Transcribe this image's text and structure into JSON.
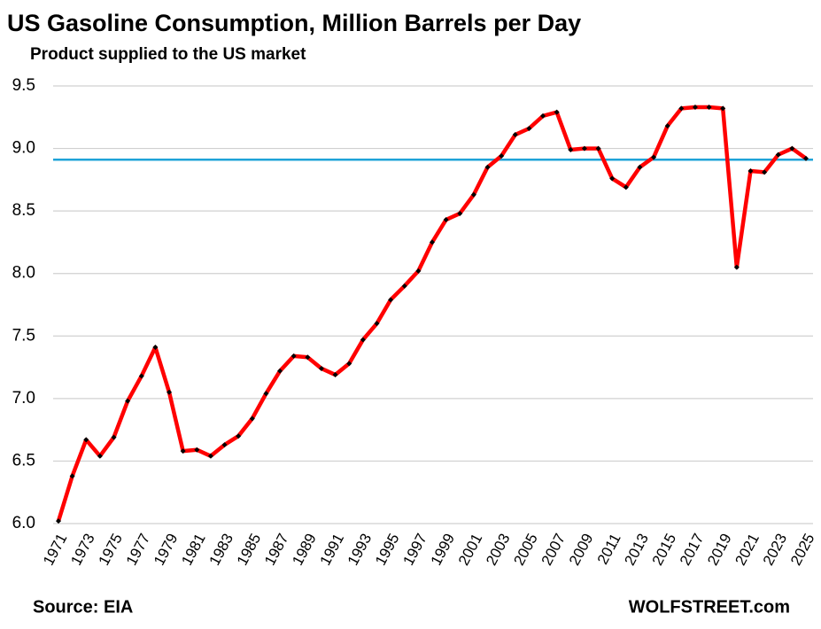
{
  "chart_data": {
    "type": "line",
    "title": "US Gasoline Consumption, Million  Barrels per Day",
    "subtitle": "Product supplied to the US market",
    "source": "Source: EIA",
    "watermark": "WOLFSTREET.com",
    "categories": [
      "1971",
      null,
      "1973",
      null,
      "1975",
      null,
      "1977",
      null,
      "1979",
      null,
      "1981",
      null,
      "1983",
      null,
      "1985",
      null,
      "1987",
      null,
      "1989",
      null,
      "1991",
      null,
      "1993",
      null,
      "1995",
      null,
      "1997",
      null,
      "1999",
      null,
      "2001",
      null,
      "2003",
      null,
      "2005",
      null,
      "2007",
      null,
      "2009",
      null,
      "2011",
      null,
      "2013",
      null,
      "2015",
      null,
      "2017",
      null,
      "2019",
      null,
      "2021",
      null,
      "2023",
      null,
      "2025"
    ],
    "series": [
      {
        "color": "#ff0000",
        "marker_color": "#000000",
        "values": [
          6.02,
          6.38,
          6.67,
          6.54,
          6.69,
          6.98,
          7.18,
          7.41,
          7.05,
          6.58,
          6.59,
          6.54,
          6.63,
          6.7,
          6.84,
          7.04,
          7.22,
          7.34,
          7.33,
          7.24,
          7.19,
          7.28,
          7.47,
          7.6,
          7.79,
          7.9,
          8.02,
          8.25,
          8.43,
          8.48,
          8.63,
          8.85,
          8.94,
          9.11,
          9.16,
          9.26,
          9.29,
          8.99,
          9.0,
          9.0,
          8.76,
          8.69,
          8.85,
          8.93,
          9.18,
          9.32,
          9.33,
          9.33,
          9.32,
          8.05,
          8.82,
          8.81,
          8.95,
          9.0,
          8.92
        ]
      }
    ],
    "reference_line": {
      "value": 8.91,
      "color": "#1fa3d8"
    },
    "ylim": [
      6.0,
      9.5
    ],
    "yticks": [
      {
        "value": 6,
        "label": "6.0"
      },
      {
        "value": 6.5,
        "label": "6.5"
      },
      {
        "value": 7,
        "label": "7.0"
      },
      {
        "value": 7.5,
        "label": "7.5"
      },
      {
        "value": 8,
        "label": "8.0"
      },
      {
        "value": 8.5,
        "label": "8.5"
      },
      {
        "value": 9,
        "label": "9.0"
      },
      {
        "value": 9.5,
        "label": "9.5"
      }
    ],
    "grid": true
  }
}
